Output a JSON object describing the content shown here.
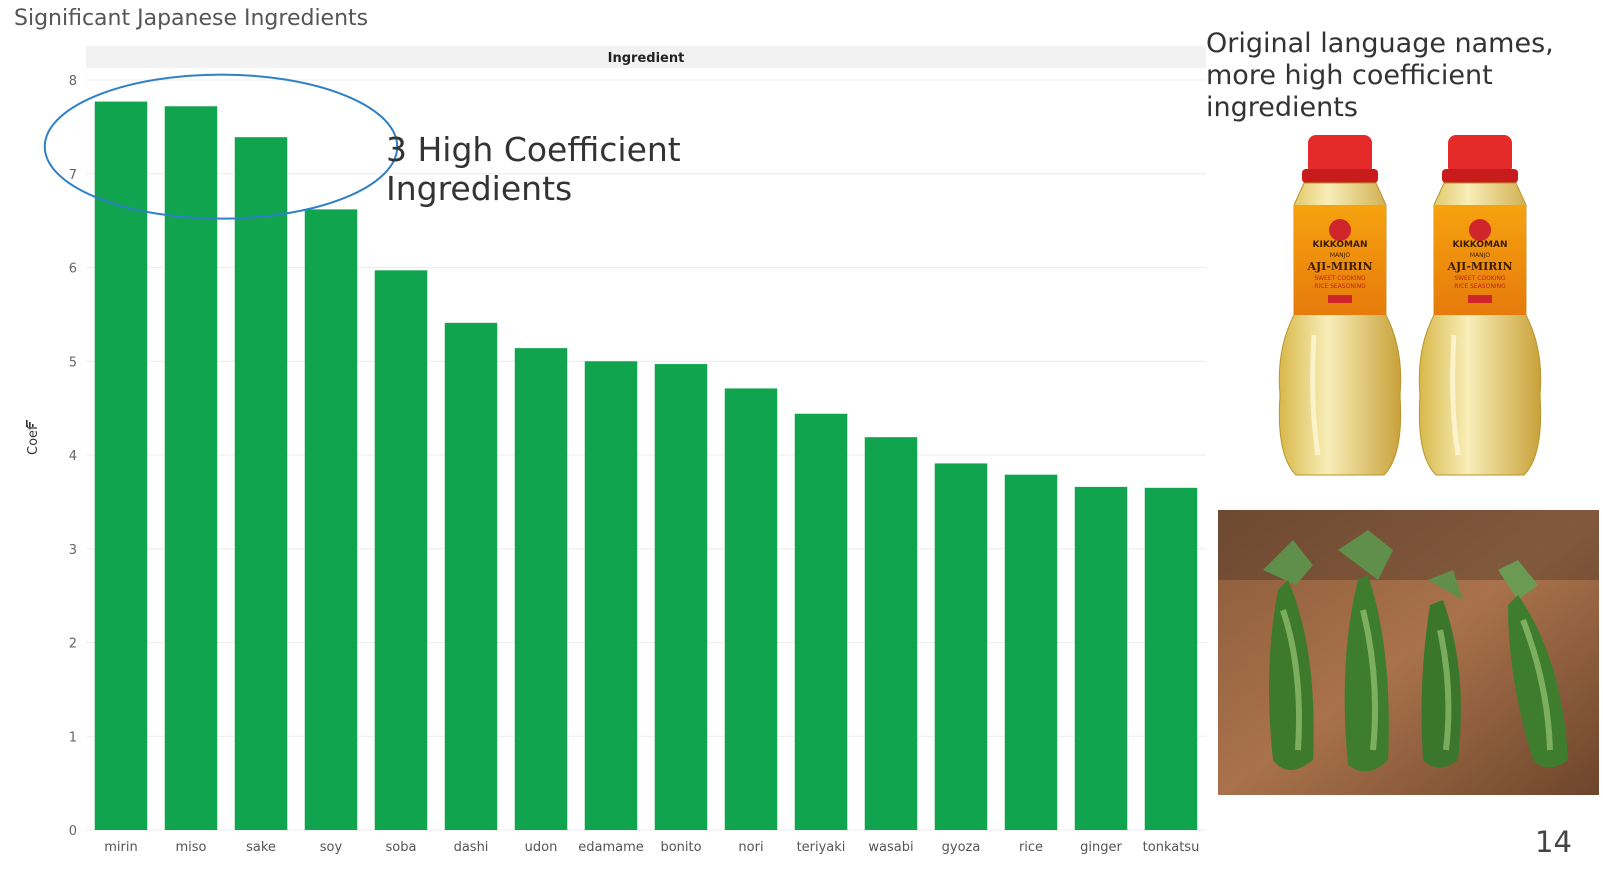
{
  "slide": {
    "title": "Significant Japanese Ingredients",
    "annotation": "3 High Coefficient\nIngredients",
    "side_note": "Original language names, more high coefficient ingredients",
    "page_number": "14"
  },
  "photos": {
    "mirin": {
      "bottle_brand": "KIKKOMAN",
      "bottle_sub": "MANJO",
      "bottle_product": "AJI-MIRIN",
      "bottle_desc1": "SWEET COOKING",
      "bottle_desc2": "RICE SEASONING"
    },
    "wasabi": {
      "subject": "wasabi-roots"
    }
  },
  "chart_data": {
    "type": "bar",
    "header": "Ingredient",
    "ylabel": "Coef",
    "ylim": [
      0,
      8
    ],
    "yticks": [
      0,
      1,
      2,
      3,
      4,
      5,
      6,
      7,
      8
    ],
    "grid": true,
    "bar_color": "#10a44e",
    "highlight_color": "#2f80c8",
    "highlighted_categories": [
      "mirin",
      "miso",
      "sake"
    ],
    "categories": [
      "mirin",
      "miso",
      "sake",
      "soy",
      "soba",
      "dashi",
      "udon",
      "edamame",
      "bonito",
      "nori",
      "teriyaki",
      "wasabi",
      "gyoza",
      "rice",
      "ginger",
      "tonkatsu"
    ],
    "values": [
      7.77,
      7.72,
      7.39,
      6.62,
      5.97,
      5.41,
      5.14,
      5.0,
      4.97,
      4.71,
      4.44,
      4.19,
      3.91,
      3.79,
      3.66,
      3.65
    ]
  }
}
